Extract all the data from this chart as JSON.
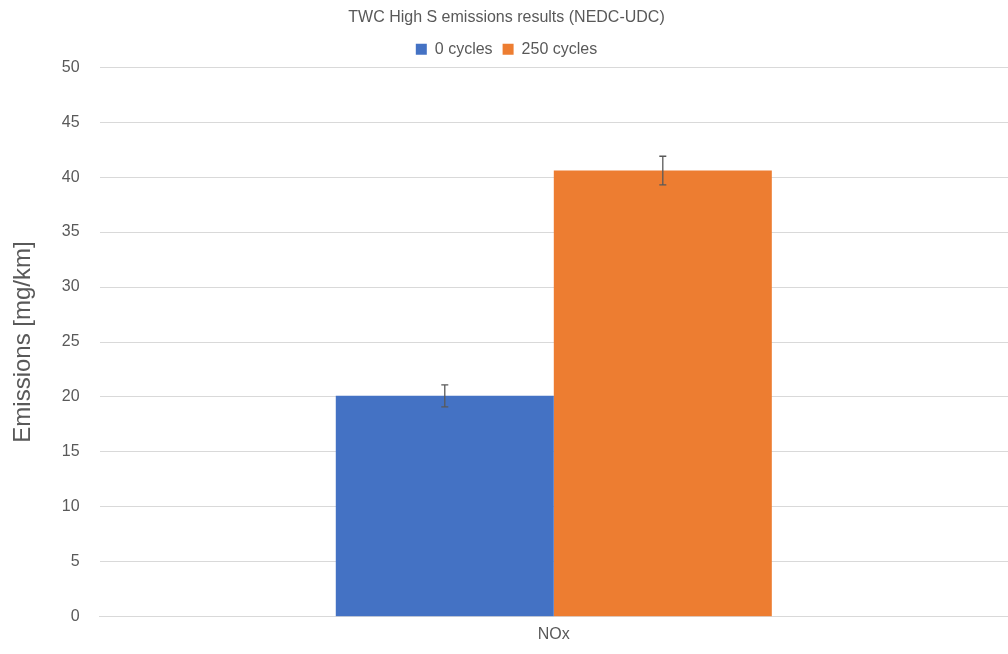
{
  "chart_data": {
    "type": "bar",
    "title": "TWC High S emissions results (NEDC-UDC)",
    "ylabel": "Emissions [mg/km]",
    "categories": [
      "NOx"
    ],
    "series": [
      {
        "name": "0 cycles",
        "color": "#4472c4",
        "values": [
          20.1
        ],
        "errors": [
          1.0
        ]
      },
      {
        "name": "250 cycles",
        "color": "#ed7d31",
        "values": [
          40.6
        ],
        "errors": [
          1.3
        ]
      }
    ],
    "ylim": [
      0,
      50
    ],
    "yticks": [
      0,
      5,
      10,
      15,
      20,
      25,
      30,
      35,
      40,
      45,
      50
    ],
    "grid": "y",
    "legend": "top"
  }
}
